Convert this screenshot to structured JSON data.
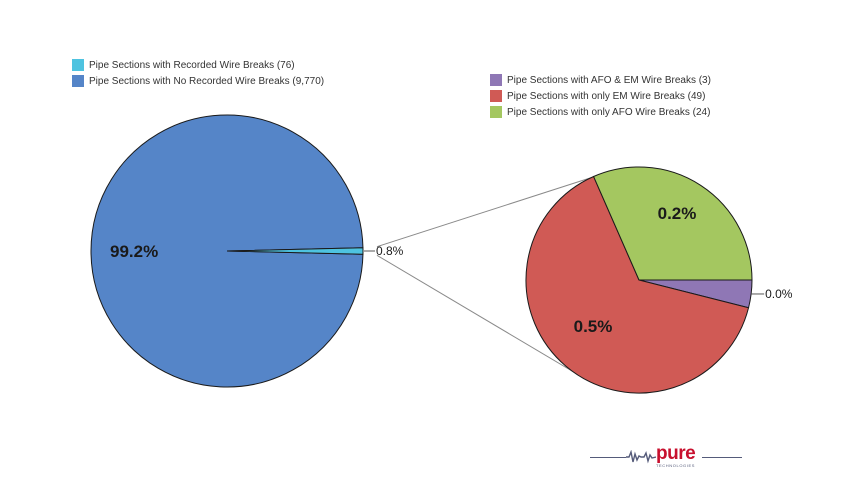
{
  "chart_data": [
    {
      "type": "pie",
      "slices": [
        {
          "label": "Pipe Sections with Recorded Wire Breaks (76)",
          "count": 76,
          "percent_label": "0.8%",
          "color": "#4ec3e0"
        },
        {
          "label": "Pipe Sections with No Recorded Wire Breaks (9,770)",
          "count": 9770,
          "percent_label": "99.2%",
          "color": "#5585c8"
        }
      ],
      "legend": "top-left"
    },
    {
      "type": "pie",
      "breakout_of": "Pipe Sections with Recorded Wire Breaks (76)",
      "slices": [
        {
          "label": "Pipe Sections with AFO & EM Wire Breaks (3)",
          "count": 3,
          "percent_label": "0.0%",
          "color": "#8f77b5"
        },
        {
          "label": "Pipe Sections with only EM Wire Breaks (49)",
          "count": 49,
          "percent_label": "0.5%",
          "color": "#d05a55"
        },
        {
          "label": "Pipe Sections with only AFO Wire Breaks (24)",
          "count": 24,
          "percent_label": "0.2%",
          "color": "#a4c760"
        }
      ],
      "legend": "top-right"
    }
  ],
  "logo": {
    "text": "pure",
    "subtext": "TECHNOLOGIES"
  }
}
